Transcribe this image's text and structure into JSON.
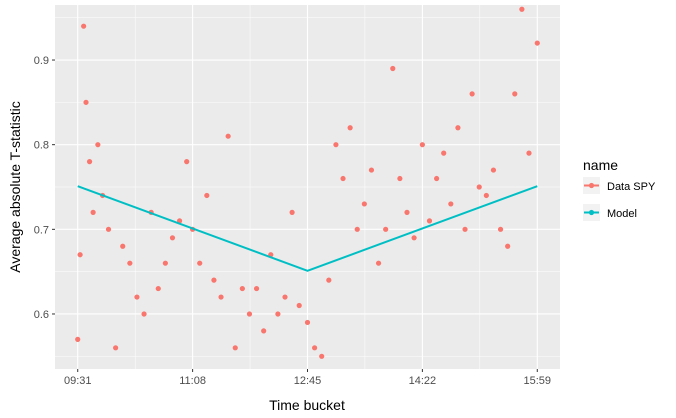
{
  "chart_data": {
    "type": "scatter",
    "xlabel": "Time bucket",
    "ylabel": "Average absolute T-statistic",
    "x_tick_labels": [
      "09:31",
      "11:08",
      "12:45",
      "14:22",
      "15:59"
    ],
    "y_ticks": [
      0.6,
      0.7,
      0.8,
      0.9
    ],
    "y_tick_labels": [
      "0.6",
      "0.7",
      "0.8",
      "0.9"
    ],
    "xlim": [
      "09:31",
      "15:59"
    ],
    "ylim": [
      0.535,
      0.965
    ],
    "grid": true,
    "legend": {
      "title": "name",
      "placement": "right",
      "entries": [
        "Data SPY",
        "Model"
      ]
    },
    "series": [
      {
        "name": "Data SPY",
        "kind": "points",
        "color": "#F8766D",
        "x": [
          "09:31",
          "09:33",
          "09:36",
          "09:38",
          "09:41",
          "09:44",
          "09:48",
          "09:52",
          "09:57",
          "10:03",
          "10:09",
          "10:15",
          "10:21",
          "10:27",
          "10:33",
          "10:39",
          "10:45",
          "10:51",
          "10:57",
          "11:03",
          "11:08",
          "11:14",
          "11:20",
          "11:26",
          "11:32",
          "11:38",
          "11:44",
          "11:50",
          "11:56",
          "12:02",
          "12:08",
          "12:14",
          "12:20",
          "12:26",
          "12:32",
          "12:38",
          "12:45",
          "12:51",
          "12:57",
          "13:03",
          "13:09",
          "13:15",
          "13:21",
          "13:27",
          "13:33",
          "13:39",
          "13:45",
          "13:51",
          "13:57",
          "14:03",
          "14:09",
          "14:15",
          "14:22",
          "14:28",
          "14:34",
          "14:40",
          "14:46",
          "14:52",
          "14:58",
          "15:04",
          "15:10",
          "15:16",
          "15:22",
          "15:28",
          "15:34",
          "15:40",
          "15:46",
          "15:52",
          "15:59"
        ],
        "y": [
          0.57,
          0.67,
          0.94,
          0.85,
          0.78,
          0.72,
          0.8,
          0.74,
          0.7,
          0.56,
          0.68,
          0.66,
          0.62,
          0.6,
          0.72,
          0.63,
          0.66,
          0.69,
          0.71,
          0.78,
          0.7,
          0.66,
          0.74,
          0.64,
          0.62,
          0.81,
          0.56,
          0.63,
          0.6,
          0.63,
          0.58,
          0.67,
          0.6,
          0.62,
          0.72,
          0.61,
          0.59,
          0.56,
          0.55,
          0.64,
          0.8,
          0.76,
          0.82,
          0.7,
          0.73,
          0.77,
          0.66,
          0.7,
          0.89,
          0.76,
          0.72,
          0.69,
          0.8,
          0.71,
          0.76,
          0.79,
          0.73,
          0.82,
          0.7,
          0.86,
          0.75,
          0.74,
          0.77,
          0.7,
          0.68,
          0.86,
          0.96,
          0.79,
          0.92
        ]
      },
      {
        "name": "Model",
        "kind": "line",
        "color": "#00BFC4",
        "x": [
          "09:31",
          "12:45",
          "15:59"
        ],
        "y": [
          0.751,
          0.651,
          0.751
        ]
      }
    ]
  }
}
